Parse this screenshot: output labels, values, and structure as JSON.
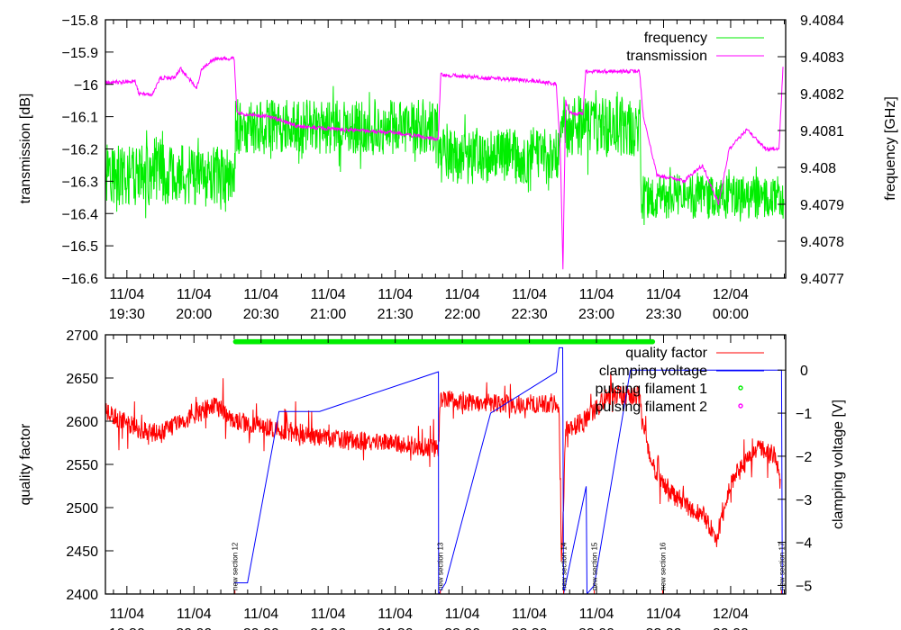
{
  "chart_data": [
    {
      "type": "line",
      "title": "",
      "xlabel": "",
      "ylabel": "transmission [dB]",
      "y2label": "frequency [GHz]",
      "xlim_hours": [
        19.34,
        24.41
      ],
      "ylim": [
        -16.6,
        -15.8
      ],
      "y2lim": [
        9.4077,
        9.4084
      ],
      "legend_position": "top-right",
      "x_ticks": [
        {
          "date": "11/04",
          "time": "19:30",
          "t": 19.5
        },
        {
          "date": "11/04",
          "time": "20:00",
          "t": 20.0
        },
        {
          "date": "11/04",
          "time": "20:30",
          "t": 20.5
        },
        {
          "date": "11/04",
          "time": "21:00",
          "t": 21.0
        },
        {
          "date": "11/04",
          "time": "21:30",
          "t": 21.5
        },
        {
          "date": "11/04",
          "time": "22:00",
          "t": 22.0
        },
        {
          "date": "11/04",
          "time": "22:30",
          "t": 22.5
        },
        {
          "date": "11/04",
          "time": "23:00",
          "t": 23.0
        },
        {
          "date": "11/04",
          "time": "23:30",
          "t": 23.5
        },
        {
          "date": "12/04",
          "time": "00:00",
          "t": 24.0
        }
      ],
      "y_ticks": [
        {
          "label": "−15.8",
          "v": -15.8
        },
        {
          "label": "−15.9",
          "v": -15.9
        },
        {
          "label": "−16",
          "v": -16.0
        },
        {
          "label": "−16.1",
          "v": -16.1
        },
        {
          "label": "−16.2",
          "v": -16.2
        },
        {
          "label": "−16.3",
          "v": -16.3
        },
        {
          "label": "−16.4",
          "v": -16.4
        },
        {
          "label": "−16.5",
          "v": -16.5
        },
        {
          "label": "−16.6",
          "v": -16.6
        }
      ],
      "y2_ticks": [
        {
          "label": "9.4084",
          "v": 9.4084
        },
        {
          "label": "9.4083",
          "v": 9.4083
        },
        {
          "label": "9.4082",
          "v": 9.4082
        },
        {
          "label": "9.4081",
          "v": 9.4081
        },
        {
          "label": "9.408",
          "v": 9.408
        },
        {
          "label": "9.4079",
          "v": 9.4079
        },
        {
          "label": "9.4078",
          "v": 9.4078
        },
        {
          "label": "9.4077",
          "v": 9.4077
        }
      ],
      "series": [
        {
          "name": "frequency",
          "axis": "y2",
          "color": "#00ee00",
          "segments_mean_noise": [
            {
              "from": 19.34,
              "to": 20.31,
              "mean": 9.40798,
              "noise": 0.00011
            },
            {
              "from": 20.31,
              "to": 21.82,
              "mean": 9.40811,
              "noise": 0.0001
            },
            {
              "from": 21.82,
              "to": 22.73,
              "mean": 9.40803,
              "noise": 0.0001
            },
            {
              "from": 22.73,
              "to": 23.33,
              "mean": 9.40811,
              "noise": 0.00011
            },
            {
              "from": 23.33,
              "to": 24.4,
              "mean": 9.40792,
              "noise": 8e-05
            }
          ]
        },
        {
          "name": "transmission",
          "axis": "y",
          "color": "#ff00ff",
          "points": [
            [
              19.34,
              -15.995
            ],
            [
              19.56,
              -15.99
            ],
            [
              19.59,
              -16.03
            ],
            [
              19.69,
              -16.03
            ],
            [
              19.75,
              -15.98
            ],
            [
              19.86,
              -15.98
            ],
            [
              19.9,
              -15.95
            ],
            [
              19.997,
              -16.0
            ],
            [
              20.02,
              -16.01
            ],
            [
              20.06,
              -15.95
            ],
            [
              20.16,
              -15.92
            ],
            [
              20.3,
              -15.92
            ],
            [
              20.32,
              -16.09
            ],
            [
              20.57,
              -16.1
            ],
            [
              20.77,
              -16.13
            ],
            [
              21.1,
              -16.14
            ],
            [
              21.5,
              -16.15
            ],
            [
              21.82,
              -16.17
            ],
            [
              21.84,
              -15.97
            ],
            [
              22.18,
              -15.98
            ],
            [
              22.58,
              -15.99
            ],
            [
              22.7,
              -16.0
            ],
            [
              22.73,
              -16.2
            ],
            [
              22.75,
              -16.57
            ],
            [
              22.77,
              -16.05
            ],
            [
              22.8,
              -16.09
            ],
            [
              22.9,
              -16.09
            ],
            [
              22.92,
              -15.96
            ],
            [
              23.32,
              -15.96
            ],
            [
              23.35,
              -16.1
            ],
            [
              23.45,
              -16.28
            ],
            [
              23.65,
              -16.3
            ],
            [
              23.79,
              -16.25
            ],
            [
              23.91,
              -16.37
            ],
            [
              23.99,
              -16.2
            ],
            [
              24.12,
              -16.14
            ],
            [
              24.26,
              -16.2
            ],
            [
              24.36,
              -16.2
            ],
            [
              24.39,
              -15.95
            ]
          ]
        }
      ]
    },
    {
      "type": "line",
      "title": "",
      "xlabel": "",
      "ylabel": "quality factor",
      "y2label": "clamping voltage [V]",
      "xlim_hours": [
        19.34,
        24.41
      ],
      "ylim": [
        2400,
        2700
      ],
      "y2lim": [
        -5.2,
        0.82
      ],
      "legend_position": "top-right",
      "y_ticks": [
        {
          "label": "2700",
          "v": 2700
        },
        {
          "label": "2650",
          "v": 2650
        },
        {
          "label": "2600",
          "v": 2600
        },
        {
          "label": "2550",
          "v": 2550
        },
        {
          "label": "2500",
          "v": 2500
        },
        {
          "label": "2450",
          "v": 2450
        },
        {
          "label": "2400",
          "v": 2400
        }
      ],
      "y2_ticks": [
        {
          "label": "0",
          "v": 0
        },
        {
          "label": "−1",
          "v": -1
        },
        {
          "label": "−2",
          "v": -2
        },
        {
          "label": "−3",
          "v": -3
        },
        {
          "label": "−4",
          "v": -4
        },
        {
          "label": "−5",
          "v": -5
        }
      ],
      "series": [
        {
          "name": "quality factor",
          "axis": "y",
          "color": "#ff0000",
          "noise": 14,
          "points": [
            [
              19.34,
              2610
            ],
            [
              19.6,
              2590
            ],
            [
              19.75,
              2585
            ],
            [
              19.9,
              2600
            ],
            [
              20.05,
              2610
            ],
            [
              20.15,
              2620
            ],
            [
              20.3,
              2600
            ],
            [
              21.0,
              2580
            ],
            [
              21.5,
              2575
            ],
            [
              21.82,
              2568
            ],
            [
              21.84,
              2625
            ],
            [
              22.3,
              2620
            ],
            [
              22.72,
              2620
            ],
            [
              22.74,
              2430
            ],
            [
              22.77,
              2590
            ],
            [
              22.9,
              2600
            ],
            [
              23.1,
              2630
            ],
            [
              23.32,
              2630
            ],
            [
              23.4,
              2550
            ],
            [
              23.6,
              2510
            ],
            [
              23.8,
              2490
            ],
            [
              23.9,
              2462
            ],
            [
              24.0,
              2530
            ],
            [
              24.2,
              2570
            ],
            [
              24.33,
              2560
            ],
            [
              24.37,
              2530
            ]
          ]
        },
        {
          "name": "clamping voltage",
          "axis": "y2",
          "color": "#0000ff",
          "points": [
            [
              20.299,
              -4.94
            ],
            [
              20.399,
              -4.94
            ],
            [
              20.634,
              -0.96
            ],
            [
              20.936,
              -0.96
            ],
            [
              21.822,
              -0.04
            ],
            [
              21.823,
              -5.2
            ],
            [
              21.876,
              -4.94
            ],
            [
              22.211,
              -1.0
            ],
            [
              22.701,
              -0.05
            ],
            [
              22.721,
              0.52
            ],
            [
              22.748,
              0.52
            ],
            [
              22.755,
              -5.2
            ],
            [
              22.923,
              -2.7
            ],
            [
              22.929,
              -5.2
            ],
            [
              22.983,
              -5.0
            ],
            [
              23.252,
              0.0
            ],
            [
              24.379,
              0.0
            ],
            [
              24.385,
              -5.2
            ]
          ]
        },
        {
          "name": "pulsing filament 1",
          "axis": "y",
          "color": "#00ee00",
          "marker": "circle",
          "from": 20.31,
          "to": 23.42,
          "level": 2692
        },
        {
          "name": "pulsing filament 2",
          "axis": "y",
          "color": "#ff00ff",
          "marker": "circle"
        }
      ],
      "annotations": [
        {
          "text": "new section 12",
          "t": 20.305
        },
        {
          "text": "new section 13",
          "t": 21.836
        },
        {
          "text": "new section 14",
          "t": 22.755
        },
        {
          "text": "new section 15",
          "t": 22.983
        },
        {
          "text": "new section 16",
          "t": 23.493
        },
        {
          "text": "new section 17",
          "t": 24.379
        }
      ]
    }
  ]
}
